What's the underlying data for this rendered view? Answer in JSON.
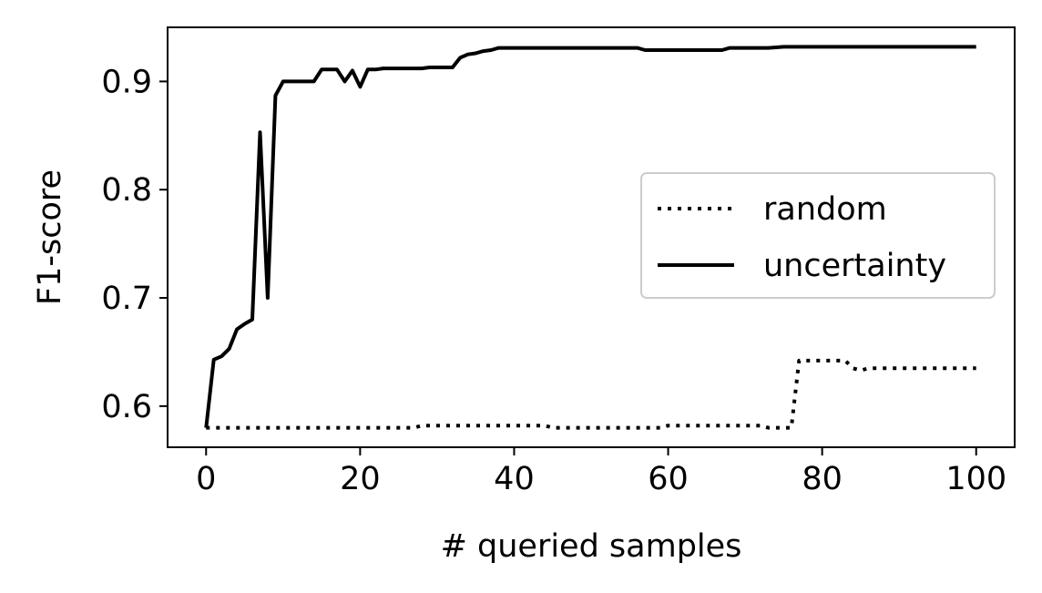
{
  "chart_data": {
    "type": "line",
    "title": "",
    "xlabel": "# queried samples",
    "ylabel": "F1-score",
    "xlim": [
      -5,
      105
    ],
    "ylim": [
      0.562,
      0.95
    ],
    "grid": false,
    "legend_placement": "center-right",
    "x_ticks": [
      0,
      20,
      40,
      60,
      80,
      100
    ],
    "y_ticks": [
      0.6,
      0.7,
      0.8,
      0.9
    ],
    "x_tick_labels": [
      "0",
      "20",
      "40",
      "60",
      "80",
      "100"
    ],
    "y_tick_labels": [
      "0.6",
      "0.7",
      "0.8",
      "0.9"
    ],
    "series": [
      {
        "name": "random",
        "style": "dotted",
        "color": "#000000",
        "x": [
          0,
          27,
          28,
          44,
          45,
          59,
          60,
          72,
          73,
          76,
          77,
          83,
          84,
          85,
          86,
          100
        ],
        "y": [
          0.58,
          0.58,
          0.582,
          0.582,
          0.58,
          0.58,
          0.582,
          0.582,
          0.58,
          0.58,
          0.642,
          0.642,
          0.635,
          0.633,
          0.635,
          0.635
        ]
      },
      {
        "name": "uncertainty",
        "style": "solid",
        "color": "#000000",
        "x": [
          0,
          1,
          2,
          3,
          4,
          5,
          6,
          7,
          8,
          9,
          10,
          11,
          12,
          13,
          14,
          15,
          16,
          17,
          18,
          19,
          20,
          21,
          22,
          23,
          24,
          25,
          26,
          27,
          28,
          29,
          30,
          31,
          32,
          33,
          34,
          35,
          36,
          37,
          38,
          39,
          40,
          45,
          50,
          55,
          56,
          57,
          60,
          65,
          67,
          68,
          70,
          72,
          73,
          75,
          80,
          90,
          100
        ],
        "y": [
          0.58,
          0.643,
          0.646,
          0.653,
          0.671,
          0.676,
          0.68,
          0.853,
          0.7,
          0.887,
          0.9,
          0.9,
          0.9,
          0.9,
          0.9,
          0.911,
          0.911,
          0.911,
          0.9,
          0.91,
          0.895,
          0.911,
          0.911,
          0.912,
          0.912,
          0.912,
          0.912,
          0.912,
          0.912,
          0.913,
          0.913,
          0.913,
          0.913,
          0.922,
          0.925,
          0.926,
          0.928,
          0.929,
          0.931,
          0.931,
          0.931,
          0.931,
          0.931,
          0.931,
          0.931,
          0.929,
          0.929,
          0.929,
          0.929,
          0.931,
          0.931,
          0.931,
          0.931,
          0.932,
          0.932,
          0.932,
          0.932
        ]
      }
    ]
  }
}
